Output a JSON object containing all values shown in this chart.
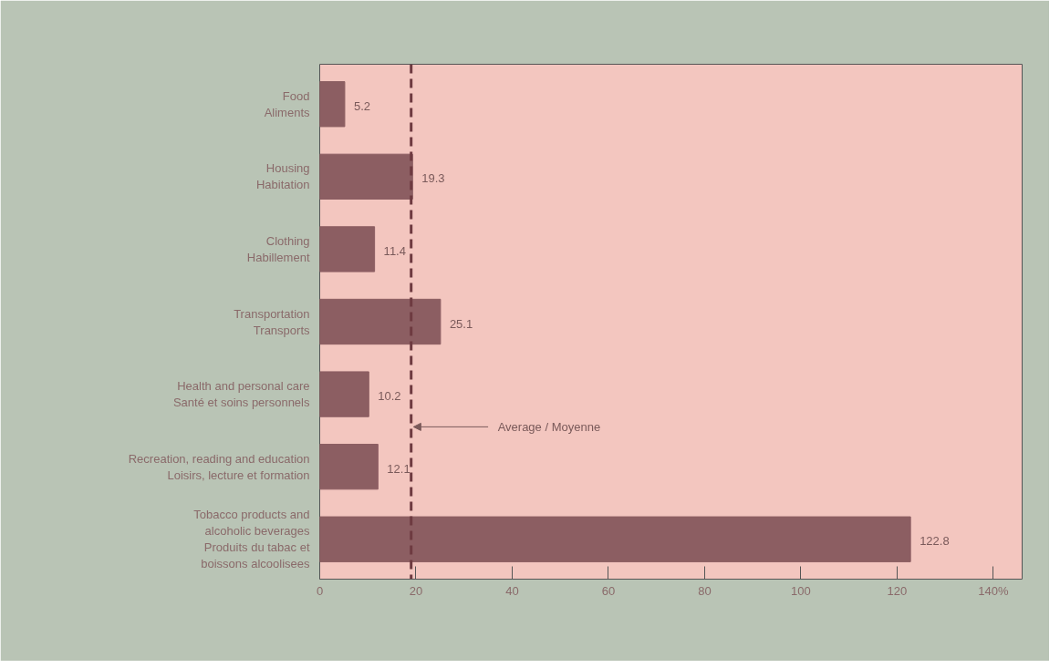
{
  "chart_data": {
    "type": "bar",
    "orientation": "horizontal",
    "categories": [
      "Food\nAliments",
      "Housing\nHabitation",
      "Clothing\nHabillement",
      "Transportation\nTransports",
      "Health and personal care\nSanté et soins personnels",
      "Recreation, reading and education\nLoisirs, lecture et formation",
      "Tobacco products and\nalcoholic beverages\nProduits du tabac et\nboissons alcoolisees"
    ],
    "values": [
      5.2,
      19.3,
      11.4,
      25.1,
      10.2,
      12.1,
      122.8
    ],
    "color": "#8c5e62",
    "data_labels": true,
    "xlim": [
      0,
      146
    ],
    "xticks": [
      0,
      20,
      40,
      60,
      80,
      100,
      120,
      {
        "value": 140,
        "label": "140%"
      }
    ],
    "grid": false,
    "ref_lines": [
      {
        "axis": "x",
        "value": 19,
        "label": "Average / Moyenne",
        "color": "#6e3a40",
        "line_style": "dashed"
      }
    ]
  }
}
